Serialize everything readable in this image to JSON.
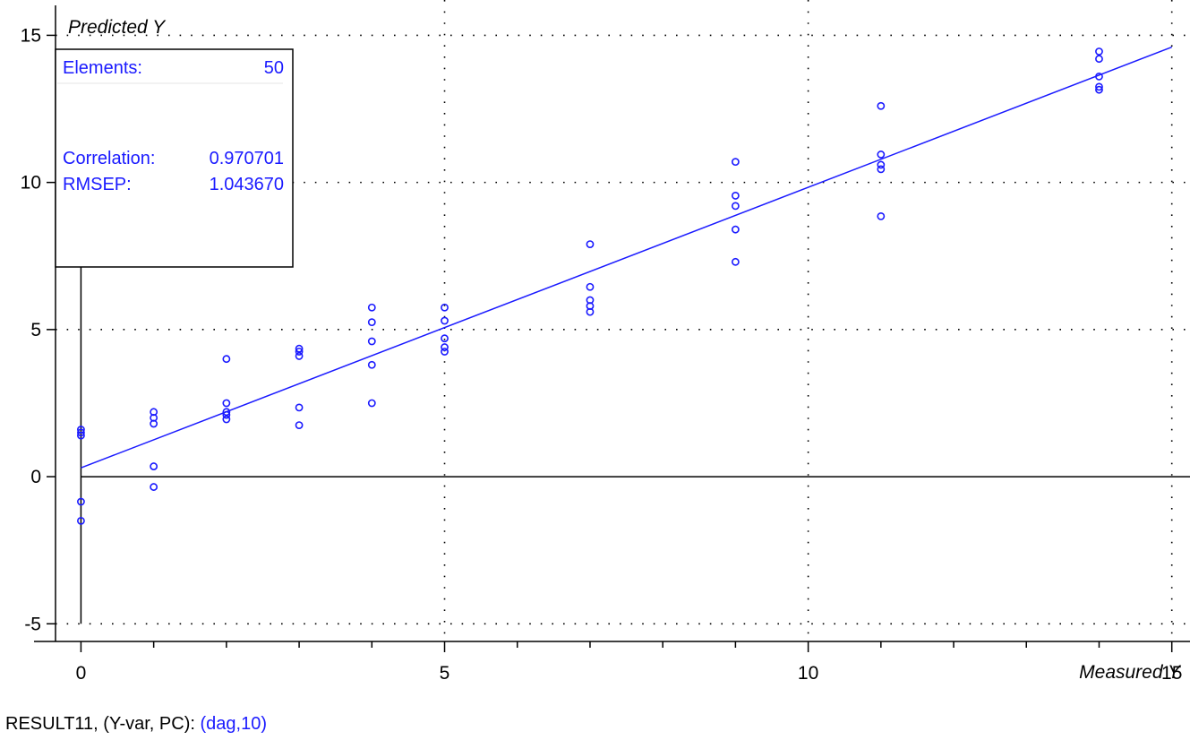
{
  "chart_data": {
    "type": "scatter",
    "xlabel": "Measured Y",
    "ylabel": "Predicted Y",
    "xlim": [
      -0.35,
      15.25
    ],
    "ylim": [
      -5.6,
      16.2
    ],
    "x_ticks": [
      0,
      5,
      10,
      15
    ],
    "y_ticks": [
      -5,
      0,
      5,
      10,
      15
    ],
    "grid": true,
    "colors": {
      "points": "#1a1aff",
      "axes": "#000000",
      "grid": "#000000"
    },
    "points": [
      {
        "x": 0,
        "y": 1.6
      },
      {
        "x": 0,
        "y": 1.5
      },
      {
        "x": 0,
        "y": 1.4
      },
      {
        "x": 0,
        "y": -0.85
      },
      {
        "x": 0,
        "y": -1.5
      },
      {
        "x": 1,
        "y": 2.2
      },
      {
        "x": 1,
        "y": 2.0
      },
      {
        "x": 1,
        "y": 1.8
      },
      {
        "x": 1,
        "y": 0.35
      },
      {
        "x": 1,
        "y": -0.35
      },
      {
        "x": 2,
        "y": 4.0
      },
      {
        "x": 2,
        "y": 2.5
      },
      {
        "x": 2,
        "y": 2.2
      },
      {
        "x": 2,
        "y": 2.1
      },
      {
        "x": 2,
        "y": 1.95
      },
      {
        "x": 3,
        "y": 4.35
      },
      {
        "x": 3,
        "y": 4.25
      },
      {
        "x": 3,
        "y": 4.1
      },
      {
        "x": 3,
        "y": 2.35
      },
      {
        "x": 3,
        "y": 1.75
      },
      {
        "x": 4,
        "y": 5.75
      },
      {
        "x": 4,
        "y": 5.25
      },
      {
        "x": 4,
        "y": 4.6
      },
      {
        "x": 4,
        "y": 3.8
      },
      {
        "x": 4,
        "y": 2.5
      },
      {
        "x": 5,
        "y": 5.75
      },
      {
        "x": 5,
        "y": 5.3
      },
      {
        "x": 5,
        "y": 4.7
      },
      {
        "x": 5,
        "y": 4.4
      },
      {
        "x": 5,
        "y": 4.25
      },
      {
        "x": 7,
        "y": 7.9
      },
      {
        "x": 7,
        "y": 6.45
      },
      {
        "x": 7,
        "y": 6.0
      },
      {
        "x": 7,
        "y": 5.8
      },
      {
        "x": 7,
        "y": 5.6
      },
      {
        "x": 9,
        "y": 10.7
      },
      {
        "x": 9,
        "y": 9.55
      },
      {
        "x": 9,
        "y": 9.2
      },
      {
        "x": 9,
        "y": 8.4
      },
      {
        "x": 9,
        "y": 7.3
      },
      {
        "x": 11,
        "y": 12.6
      },
      {
        "x": 11,
        "y": 10.95
      },
      {
        "x": 11,
        "y": 10.6
      },
      {
        "x": 11,
        "y": 10.45
      },
      {
        "x": 11,
        "y": 8.85
      },
      {
        "x": 14,
        "y": 14.45
      },
      {
        "x": 14,
        "y": 14.2
      },
      {
        "x": 14,
        "y": 13.6
      },
      {
        "x": 14,
        "y": 13.25
      },
      {
        "x": 14,
        "y": 13.15
      }
    ],
    "regression_line": {
      "x": [
        0,
        15
      ],
      "y": [
        0.3,
        14.6
      ]
    }
  },
  "stats_box": {
    "elements_label": "Elements:",
    "elements_value": "50",
    "correlation_label": "Correlation:",
    "correlation_value": "0.970701",
    "rmsep_label": "RMSEP:",
    "rmsep_value": "1.043670"
  },
  "caption": {
    "prefix": "RESULT11, (Y-var, PC): ",
    "accent": "(dag,10)"
  }
}
